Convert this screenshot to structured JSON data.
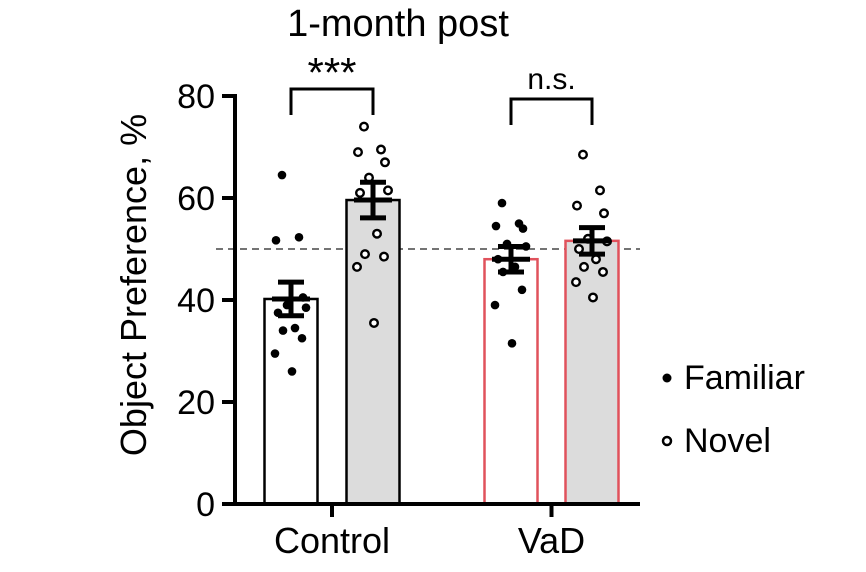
{
  "chart_data": {
    "type": "bar",
    "title": "1-month post",
    "ylabel": "Object Preference, %",
    "xlabel": "",
    "ylim": [
      0,
      80
    ],
    "yticks": [
      0,
      20,
      40,
      60,
      80
    ],
    "reference_line": 50,
    "groups": [
      "Control",
      "VaD"
    ],
    "series": [
      {
        "name": "Familiar",
        "marker": "filled-dot",
        "means": [
          40.2,
          48.0
        ],
        "sem": [
          3.3,
          2.5
        ],
        "points": [
          [
            64.5,
            52.3,
            51.7,
            40.5,
            39.0,
            38.5,
            37.5,
            34.5,
            34.0,
            32.5,
            29.5,
            26.0
          ],
          [
            59.0,
            55.0,
            54.5,
            54.0,
            51.0,
            50.5,
            48.0,
            46.5,
            45.5,
            42.0,
            39.0,
            31.5
          ]
        ]
      },
      {
        "name": "Novel",
        "marker": "open-circle",
        "means": [
          59.6,
          51.6
        ],
        "sem": [
          3.5,
          2.6
        ],
        "points": [
          [
            74.0,
            69.5,
            69.0,
            67.0,
            64.0,
            61.5,
            61.0,
            53.0,
            49.0,
            48.5,
            46.5,
            35.5
          ],
          [
            68.5,
            61.5,
            58.5,
            57.0,
            52.0,
            51.5,
            50.0,
            48.0,
            46.5,
            45.5,
            43.5,
            40.5
          ]
        ]
      }
    ],
    "bar_colors": [
      {
        "fill": "#ffffff",
        "stroke": "#000000"
      },
      {
        "fill": "#dcdcdc",
        "stroke": "#000000"
      },
      {
        "fill": "#ffffff",
        "stroke": "#e0525c"
      },
      {
        "fill": "#dcdcdc",
        "stroke": "#e0525c"
      }
    ],
    "significance": [
      {
        "group": "Control",
        "label": "***"
      },
      {
        "group": "VaD",
        "label": "n.s."
      }
    ],
    "legend": {
      "position": "right",
      "entries": [
        "Familiar",
        "Novel"
      ]
    }
  }
}
